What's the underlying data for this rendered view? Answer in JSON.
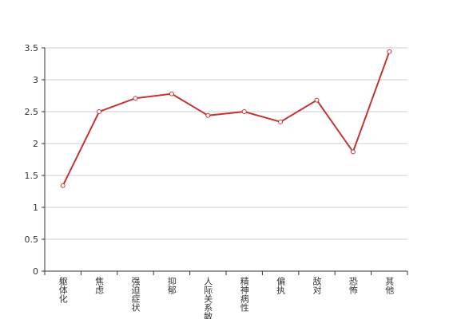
{
  "chart_data": {
    "type": "line",
    "categories": [
      "躯体化",
      "焦虑",
      "强迫症状",
      "抑郁",
      "人际关系敏感",
      "精神病性",
      "偏执",
      "敌对",
      "恐怖",
      "其他"
    ],
    "values": [
      1.34,
      2.5,
      2.71,
      2.78,
      2.44,
      2.5,
      2.34,
      2.68,
      1.87,
      3.44
    ],
    "color": "#c23531",
    "ylim": [
      0,
      3.5
    ],
    "yticks": [
      0,
      0.5,
      1,
      1.5,
      2,
      2.5,
      3,
      3.5
    ],
    "grid": true
  }
}
